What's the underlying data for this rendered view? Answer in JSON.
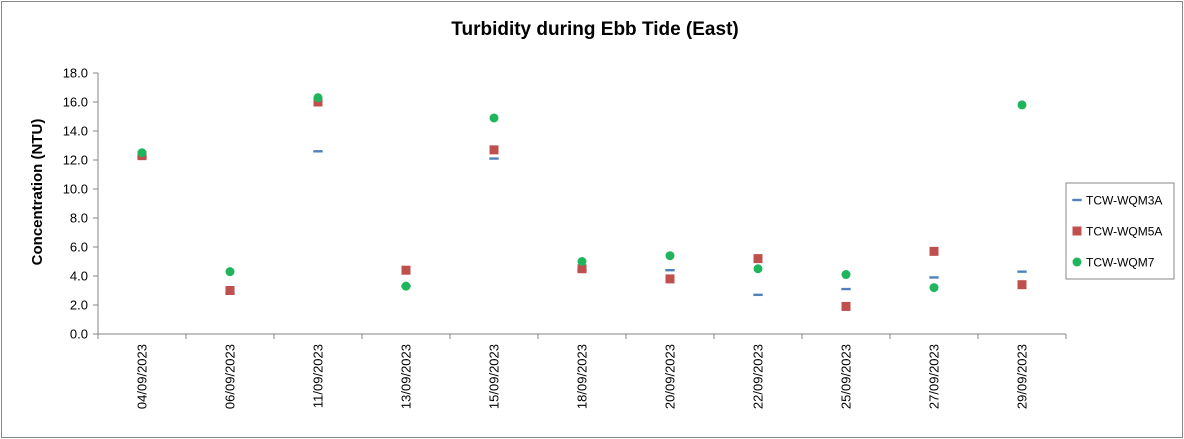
{
  "chart_data": {
    "type": "scatter",
    "title": "Turbidity during Ebb Tide (East)",
    "xlabel": "",
    "ylabel": "Concentration (NTU)",
    "ylim": [
      0,
      18
    ],
    "yticks": [
      "0.0",
      "2.0",
      "4.0",
      "6.0",
      "8.0",
      "10.0",
      "12.0",
      "14.0",
      "16.0",
      "18.0"
    ],
    "categories": [
      "04/09/2023",
      "06/09/2023",
      "11/09/2023",
      "13/09/2023",
      "15/09/2023",
      "18/09/2023",
      "20/09/2023",
      "22/09/2023",
      "25/09/2023",
      "27/09/2023",
      "29/09/2023"
    ],
    "grid": false,
    "legend_position": "right",
    "series": [
      {
        "name": "TCW-WQM3A",
        "marker": "dash",
        "color": "#4f81bd",
        "values": [
          12.2,
          2.8,
          12.6,
          3.3,
          12.1,
          4.4,
          4.4,
          2.7,
          3.1,
          3.9,
          4.3
        ]
      },
      {
        "name": "TCW-WQM5A",
        "marker": "square",
        "color": "#c0504d",
        "values": [
          12.3,
          3.0,
          16.0,
          4.4,
          12.7,
          4.5,
          3.8,
          5.2,
          1.9,
          5.7,
          3.4
        ]
      },
      {
        "name": "TCW-WQM7",
        "marker": "circle",
        "color": "#1fb55c",
        "values": [
          12.5,
          4.3,
          16.3,
          3.3,
          14.9,
          5.0,
          5.4,
          4.5,
          4.1,
          3.2,
          15.8
        ]
      }
    ]
  }
}
